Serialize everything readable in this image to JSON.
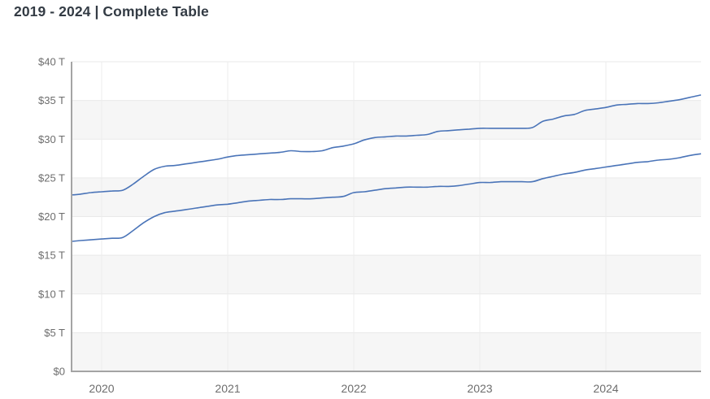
{
  "header": {
    "title": "2019 - 2024 | Complete Table"
  },
  "chart_data": {
    "type": "line",
    "title": "2019 - 2024 | Complete Table",
    "xlabel": "",
    "ylabel": "",
    "y_unit": "trillions of US dollars",
    "x_unit": "year (monthly data points)",
    "xlim": [
      2019.75,
      2024.79
    ],
    "ylim": [
      0,
      40
    ],
    "legend": "none",
    "grid": {
      "horizontal": true,
      "vertical_years": true,
      "alternating_bands": true
    },
    "colors": {
      "line": "#4a74b8",
      "band": "#f6f6f6",
      "grid": "#e9e9e9",
      "vgrid": "#ececec",
      "axis": "#a4a4a4",
      "tick_label": "#6d6d6d",
      "title": "#333b44",
      "background": "#ffffff"
    },
    "x_ticks": [
      {
        "value": 2020,
        "label": "2020"
      },
      {
        "value": 2021,
        "label": "2021"
      },
      {
        "value": 2022,
        "label": "2022"
      },
      {
        "value": 2023,
        "label": "2023"
      },
      {
        "value": 2024,
        "label": "2024"
      }
    ],
    "y_ticks": [
      {
        "value": 40,
        "label": "$40 T"
      },
      {
        "value": 35,
        "label": "$35 T"
      },
      {
        "value": 30,
        "label": "$30 T"
      },
      {
        "value": 25,
        "label": "$25 T"
      },
      {
        "value": 20,
        "label": "$20 T"
      },
      {
        "value": 15,
        "label": "$15 T"
      },
      {
        "value": 10,
        "label": "$10 T"
      },
      {
        "value": 5,
        "label": "$5 T"
      },
      {
        "value": 0,
        "label": "$0"
      }
    ],
    "x": [
      2019.75,
      2019.833,
      2019.917,
      2020,
      2020.083,
      2020.167,
      2020.25,
      2020.333,
      2020.417,
      2020.5,
      2020.583,
      2020.667,
      2020.75,
      2020.833,
      2020.917,
      2021,
      2021.083,
      2021.167,
      2021.25,
      2021.333,
      2021.417,
      2021.5,
      2021.583,
      2021.667,
      2021.75,
      2021.833,
      2021.917,
      2022,
      2022.083,
      2022.167,
      2022.25,
      2022.333,
      2022.417,
      2022.5,
      2022.583,
      2022.667,
      2022.75,
      2022.833,
      2022.917,
      2023,
      2023.083,
      2023.167,
      2023.25,
      2023.333,
      2023.417,
      2023.5,
      2023.583,
      2023.667,
      2023.75,
      2023.833,
      2023.917,
      2024,
      2024.083,
      2024.167,
      2024.25,
      2024.333,
      2024.417,
      2024.5,
      2024.583,
      2024.667,
      2024.75
    ],
    "series": [
      {
        "name": "upper-line",
        "values": [
          22.8,
          22.9,
          23.1,
          23.2,
          23.3,
          23.4,
          24.2,
          25.2,
          26.1,
          26.5,
          26.6,
          26.8,
          27.0,
          27.2,
          27.4,
          27.7,
          27.9,
          28.0,
          28.1,
          28.2,
          28.3,
          28.5,
          28.4,
          28.4,
          28.5,
          28.9,
          29.1,
          29.4,
          29.9,
          30.2,
          30.3,
          30.4,
          30.4,
          30.5,
          30.6,
          31.0,
          31.1,
          31.2,
          31.3,
          31.4,
          31.4,
          31.4,
          31.4,
          31.4,
          31.5,
          32.3,
          32.6,
          33.0,
          33.2,
          33.7,
          33.9,
          34.1,
          34.4,
          34.5,
          34.6,
          34.6,
          34.7,
          34.9,
          35.1,
          35.4,
          35.7
        ]
      },
      {
        "name": "lower-line",
        "values": [
          16.8,
          16.9,
          17.0,
          17.1,
          17.2,
          17.3,
          18.2,
          19.2,
          20.0,
          20.5,
          20.7,
          20.9,
          21.1,
          21.3,
          21.5,
          21.6,
          21.8,
          22.0,
          22.1,
          22.2,
          22.2,
          22.3,
          22.3,
          22.3,
          22.4,
          22.5,
          22.6,
          23.1,
          23.2,
          23.4,
          23.6,
          23.7,
          23.8,
          23.8,
          23.8,
          23.9,
          23.9,
          24.0,
          24.2,
          24.4,
          24.4,
          24.5,
          24.5,
          24.5,
          24.5,
          24.9,
          25.2,
          25.5,
          25.7,
          26.0,
          26.2,
          26.4,
          26.6,
          26.8,
          27.0,
          27.1,
          27.3,
          27.4,
          27.6,
          27.9,
          28.1
        ]
      }
    ]
  }
}
